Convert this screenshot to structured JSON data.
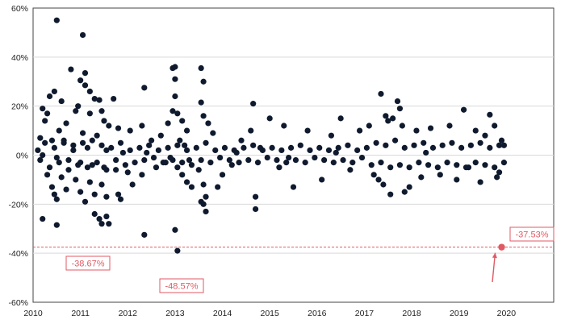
{
  "chart_data": {
    "type": "scatter",
    "title": "",
    "xlabel": "",
    "ylabel": "",
    "xlim": [
      2010,
      2021
    ],
    "ylim": [
      -60,
      60
    ],
    "x_ticks": [
      "2010",
      "2011",
      "2012",
      "2013",
      "2014",
      "2015",
      "2016",
      "2017",
      "2018",
      "2019",
      "2020"
    ],
    "y_ticks": [
      "60%",
      "40%",
      "20%",
      "0%",
      "-20%",
      "-40%",
      "-60%"
    ],
    "grid": "horizontal",
    "legend": "none",
    "point_color": "#0f1a2e",
    "highlight_color": "#e05a63",
    "series": [
      {
        "points": [
          [
            2010.5,
            55
          ],
          [
            2011.05,
            49
          ],
          [
            2010.8,
            35
          ],
          [
            2011.1,
            33.5
          ],
          [
            2011.0,
            30.5
          ],
          [
            2011.1,
            28.5
          ],
          [
            2011.2,
            26
          ],
          [
            2010.45,
            26
          ],
          [
            2010.35,
            24
          ],
          [
            2010.6,
            22
          ],
          [
            2011.3,
            23
          ],
          [
            2011.4,
            22.5
          ],
          [
            2011.7,
            23
          ],
          [
            2010.2,
            19
          ],
          [
            2010.9,
            18
          ],
          [
            2010.3,
            17
          ],
          [
            2011.2,
            17
          ],
          [
            2011.45,
            18
          ],
          [
            2010.95,
            20
          ],
          [
            2011.5,
            14
          ],
          [
            2010.25,
            14
          ],
          [
            2010.7,
            13
          ],
          [
            2011.6,
            12
          ],
          [
            2011.8,
            11
          ],
          [
            2012.05,
            10
          ],
          [
            2010.55,
            10
          ],
          [
            2011.05,
            9
          ],
          [
            2011.35,
            8
          ],
          [
            2010.15,
            7
          ],
          [
            2010.4,
            6
          ],
          [
            2010.65,
            5
          ],
          [
            2010.85,
            4
          ],
          [
            2011.15,
            3
          ],
          [
            2011.55,
            2
          ],
          [
            2011.9,
            1
          ],
          [
            2010.2,
            0
          ],
          [
            2010.5,
            -1
          ],
          [
            2010.75,
            -2
          ],
          [
            2011.0,
            -3
          ],
          [
            2011.25,
            -4
          ],
          [
            2011.5,
            -5
          ],
          [
            2011.75,
            -6
          ],
          [
            2012.0,
            -7
          ],
          [
            2010.3,
            -8
          ],
          [
            2010.6,
            -9
          ],
          [
            2010.9,
            -10
          ],
          [
            2011.2,
            -11
          ],
          [
            2011.45,
            -12
          ],
          [
            2010.4,
            -13
          ],
          [
            2010.7,
            -14
          ],
          [
            2011.0,
            -15
          ],
          [
            2011.3,
            -16
          ],
          [
            2011.55,
            -17
          ],
          [
            2010.45,
            -16
          ],
          [
            2010.5,
            -18
          ],
          [
            2011.8,
            -16
          ],
          [
            2011.1,
            -19
          ],
          [
            2011.3,
            -24
          ],
          [
            2011.4,
            -26
          ],
          [
            2011.55,
            -25
          ],
          [
            2011.6,
            -28
          ],
          [
            2011.45,
            -28
          ],
          [
            2010.2,
            -26
          ],
          [
            2010.5,
            -28.5
          ],
          [
            2011.85,
            -18
          ],
          [
            2012.1,
            -12
          ],
          [
            2012.3,
            -8
          ],
          [
            2012.5,
            6
          ],
          [
            2012.7,
            8
          ],
          [
            2012.3,
            12
          ],
          [
            2012.35,
            27.5
          ],
          [
            2012.6,
            -5
          ],
          [
            2012.8,
            -3
          ],
          [
            2012.85,
            13
          ],
          [
            2012.95,
            18
          ],
          [
            2012.95,
            35.5
          ],
          [
            2013.0,
            36
          ],
          [
            2013.0,
            31
          ],
          [
            2013.0,
            24
          ],
          [
            2013.05,
            17
          ],
          [
            2013.15,
            14
          ],
          [
            2013.25,
            10
          ],
          [
            2013.1,
            6
          ],
          [
            2013.2,
            4
          ],
          [
            2013.3,
            -2
          ],
          [
            2013.05,
            -5
          ],
          [
            2013.15,
            -8
          ],
          [
            2013.25,
            -11
          ],
          [
            2013.35,
            -13
          ],
          [
            2012.35,
            -32.5
          ],
          [
            2013.0,
            -30.5
          ],
          [
            2013.05,
            -39
          ],
          [
            2013.55,
            35.5
          ],
          [
            2013.6,
            30
          ],
          [
            2013.55,
            21.5
          ],
          [
            2013.6,
            16
          ],
          [
            2013.7,
            13
          ],
          [
            2013.8,
            9
          ],
          [
            2013.5,
            -6
          ],
          [
            2013.6,
            -12
          ],
          [
            2013.65,
            -17
          ],
          [
            2013.6,
            -20
          ],
          [
            2013.65,
            -23
          ],
          [
            2013.55,
            -19
          ],
          [
            2013.9,
            -13
          ],
          [
            2014.0,
            -8
          ],
          [
            2014.2,
            -4
          ],
          [
            2014.4,
            6
          ],
          [
            2014.6,
            10
          ],
          [
            2014.8,
            3
          ],
          [
            2014.65,
            21
          ],
          [
            2014.7,
            -17
          ],
          [
            2014.7,
            -22
          ],
          [
            2015.0,
            15
          ],
          [
            2015.2,
            -5
          ],
          [
            2015.3,
            12
          ],
          [
            2015.5,
            -13
          ],
          [
            2015.8,
            10
          ],
          [
            2016.1,
            -10
          ],
          [
            2016.3,
            8
          ],
          [
            2016.5,
            15
          ],
          [
            2016.7,
            -6
          ],
          [
            2016.9,
            10
          ],
          [
            2017.1,
            12
          ],
          [
            2017.2,
            -8
          ],
          [
            2017.3,
            -10
          ],
          [
            2017.35,
            25
          ],
          [
            2017.4,
            -12
          ],
          [
            2017.45,
            16
          ],
          [
            2017.5,
            14
          ],
          [
            2017.55,
            -16
          ],
          [
            2017.6,
            15
          ],
          [
            2017.7,
            22
          ],
          [
            2017.75,
            19
          ],
          [
            2017.8,
            12
          ],
          [
            2017.85,
            -15
          ],
          [
            2017.95,
            -13
          ],
          [
            2018.1,
            10
          ],
          [
            2018.2,
            -9
          ],
          [
            2018.4,
            11
          ],
          [
            2018.6,
            -8
          ],
          [
            2018.8,
            12
          ],
          [
            2018.95,
            -10
          ],
          [
            2019.1,
            18.5
          ],
          [
            2019.2,
            -5
          ],
          [
            2019.35,
            10
          ],
          [
            2019.45,
            -11
          ],
          [
            2019.55,
            8
          ],
          [
            2019.65,
            16.5
          ],
          [
            2019.75,
            12
          ],
          [
            2019.8,
            -9
          ],
          [
            2019.85,
            -7
          ],
          [
            2019.9,
            6
          ],
          [
            2019.95,
            4
          ],
          [
            2010.1,
            2
          ],
          [
            2010.15,
            -2
          ],
          [
            2010.25,
            5
          ],
          [
            2010.35,
            -5
          ],
          [
            2010.45,
            3
          ],
          [
            2010.55,
            -3
          ],
          [
            2010.65,
            6
          ],
          [
            2010.75,
            -6
          ],
          [
            2010.85,
            2
          ],
          [
            2010.95,
            -4
          ],
          [
            2011.05,
            5
          ],
          [
            2011.15,
            -5
          ],
          [
            2011.25,
            6
          ],
          [
            2011.35,
            -3
          ],
          [
            2011.45,
            4
          ],
          [
            2011.55,
            -6
          ],
          [
            2011.65,
            3
          ],
          [
            2011.75,
            -2
          ],
          [
            2011.85,
            5
          ],
          [
            2011.95,
            -4
          ],
          [
            2012.05,
            2
          ],
          [
            2012.15,
            -3
          ],
          [
            2012.25,
            3
          ],
          [
            2012.35,
            -2
          ],
          [
            2012.45,
            4
          ],
          [
            2012.55,
            -1
          ],
          [
            2012.65,
            2
          ],
          [
            2012.75,
            -3
          ],
          [
            2012.85,
            3
          ],
          [
            2012.95,
            -2
          ],
          [
            2013.05,
            4
          ],
          [
            2013.15,
            -3
          ],
          [
            2013.25,
            2
          ],
          [
            2013.35,
            -4
          ],
          [
            2013.45,
            3
          ],
          [
            2013.55,
            -2
          ],
          [
            2013.65,
            5
          ],
          [
            2013.75,
            -3
          ],
          [
            2013.85,
            2
          ],
          [
            2013.95,
            -1
          ],
          [
            2014.05,
            3
          ],
          [
            2014.15,
            -2
          ],
          [
            2014.25,
            2
          ],
          [
            2014.35,
            -3
          ],
          [
            2014.45,
            3
          ],
          [
            2014.55,
            -2
          ],
          [
            2014.65,
            4
          ],
          [
            2014.75,
            -3
          ],
          [
            2014.85,
            2
          ],
          [
            2014.95,
            -1
          ],
          [
            2015.05,
            3
          ],
          [
            2015.15,
            -2
          ],
          [
            2015.25,
            2
          ],
          [
            2015.35,
            -3
          ],
          [
            2015.45,
            3
          ],
          [
            2015.55,
            -2
          ],
          [
            2015.65,
            4
          ],
          [
            2015.75,
            -3
          ],
          [
            2015.85,
            2
          ],
          [
            2015.95,
            -1
          ],
          [
            2016.05,
            3
          ],
          [
            2016.15,
            -2
          ],
          [
            2016.25,
            2
          ],
          [
            2016.35,
            -3
          ],
          [
            2016.45,
            3
          ],
          [
            2016.55,
            -2
          ],
          [
            2016.65,
            4
          ],
          [
            2016.75,
            -3
          ],
          [
            2016.85,
            2
          ],
          [
            2016.95,
            -1
          ],
          [
            2017.05,
            3
          ],
          [
            2017.15,
            -4
          ],
          [
            2017.25,
            5
          ],
          [
            2017.35,
            -3
          ],
          [
            2017.45,
            4
          ],
          [
            2017.55,
            -5
          ],
          [
            2017.65,
            6
          ],
          [
            2017.75,
            -4
          ],
          [
            2017.85,
            3
          ],
          [
            2017.95,
            -5
          ],
          [
            2018.05,
            4
          ],
          [
            2018.15,
            -3
          ],
          [
            2018.25,
            5
          ],
          [
            2018.35,
            -4
          ],
          [
            2018.45,
            3
          ],
          [
            2018.55,
            -5
          ],
          [
            2018.65,
            4
          ],
          [
            2018.75,
            -3
          ],
          [
            2018.85,
            5
          ],
          [
            2018.95,
            -4
          ],
          [
            2019.05,
            3
          ],
          [
            2019.15,
            -5
          ],
          [
            2019.25,
            4
          ],
          [
            2019.35,
            -3
          ],
          [
            2019.45,
            5
          ],
          [
            2019.55,
            -4
          ],
          [
            2019.65,
            3
          ],
          [
            2019.75,
            -5
          ],
          [
            2019.85,
            4
          ],
          [
            2019.95,
            -3
          ],
          [
            2012.4,
            1
          ],
          [
            2012.9,
            -1
          ],
          [
            2014.3,
            1
          ],
          [
            2015.4,
            -1
          ],
          [
            2016.4,
            1
          ],
          [
            2018.3,
            1
          ]
        ]
      }
    ],
    "annotations": [
      {
        "label": "-38.67%",
        "x": 2011.1,
        "y": -38.67
      },
      {
        "label": "-48.57%",
        "x": 2013.0,
        "y": -48.57
      },
      {
        "label": "-37.53%",
        "x": 2019.9,
        "y": -37.53
      }
    ],
    "reference_line": {
      "y": -37.53
    }
  }
}
